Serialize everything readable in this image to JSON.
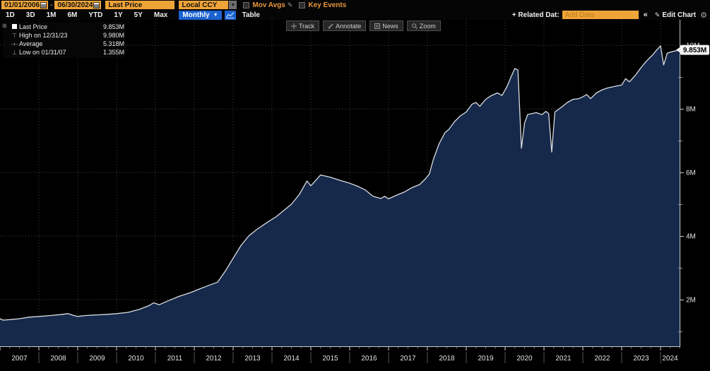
{
  "header": {
    "date_from": "01/01/2006",
    "date_to": "06/30/2024",
    "dash": "-",
    "field": "Last Price",
    "currency": "Local CCY",
    "dropdown_arrow": "▼",
    "mov_avgs_label": "Mov Avgs",
    "key_events_label": "Key Events",
    "range_tabs": {
      "t0": "1D",
      "t1": "3D",
      "t2": "1M",
      "t3": "6M",
      "t4": "YTD",
      "t5": "1Y",
      "t6": "5Y",
      "t7": "Max"
    },
    "period": "Monthly",
    "period_arrow": "▼",
    "table_label": "Table",
    "related_data_label": "+ Related Dat:",
    "add_data_placeholder": "Add Data",
    "collapse_label": "«",
    "edit_chart_label": "Edit Chart",
    "gear_glyph": "⚙",
    "pencil_glyph": "✎",
    "expander_glyph": "⊞"
  },
  "chart_toolbar": {
    "track": "Track",
    "annotate": "Annotate",
    "news": "News",
    "zoom": "Zoom"
  },
  "legend": {
    "rows": [
      {
        "icon": "series-square",
        "label": "Last Price",
        "value": "9.853M"
      },
      {
        "icon": "high-marker",
        "label": "High on 12/31/23",
        "value": "9.980M",
        "glyph": "⊤"
      },
      {
        "icon": "average-marker",
        "label": "Average",
        "value": "5.318M",
        "glyph": "-+-"
      },
      {
        "icon": "low-marker",
        "label": "Low on 01/31/07",
        "value": "1.355M",
        "glyph": "⊥"
      }
    ]
  },
  "chart_data": {
    "type": "area",
    "title": "Last Price",
    "x_unit": "decimal_year",
    "x_range": [
      2007.0,
      2024.5
    ],
    "x_tick_years": [
      2007,
      2008,
      2009,
      2010,
      2011,
      2012,
      2013,
      2014,
      2015,
      2016,
      2017,
      2018,
      2019,
      2020,
      2021,
      2022,
      2023,
      2024
    ],
    "y_axis": {
      "ticks": [
        2,
        4,
        6,
        8,
        10
      ],
      "tick_labels": [
        "2M",
        "4M",
        "6M",
        "8M",
        "10M"
      ],
      "minor_ticks": [
        1,
        3,
        5,
        7,
        9
      ],
      "unit": "M"
    },
    "grid": true,
    "legend_position": "top-left",
    "last_price": 9.853,
    "last_price_label": "9.853M",
    "high": {
      "date": "12/31/23",
      "value": 9.98
    },
    "low": {
      "date": "01/31/07",
      "value": 1.355
    },
    "average": 5.318,
    "points": [
      [
        2007.0,
        1.4
      ],
      [
        2007.08,
        1.355
      ],
      [
        2007.25,
        1.37
      ],
      [
        2007.5,
        1.4
      ],
      [
        2007.75,
        1.45
      ],
      [
        2008.0,
        1.47
      ],
      [
        2008.3,
        1.5
      ],
      [
        2008.55,
        1.53
      ],
      [
        2008.75,
        1.56
      ],
      [
        2008.9,
        1.5
      ],
      [
        2009.0,
        1.47
      ],
      [
        2009.2,
        1.5
      ],
      [
        2009.5,
        1.52
      ],
      [
        2009.8,
        1.54
      ],
      [
        2010.0,
        1.56
      ],
      [
        2010.3,
        1.6
      ],
      [
        2010.6,
        1.7
      ],
      [
        2010.85,
        1.82
      ],
      [
        2010.95,
        1.9
      ],
      [
        2011.1,
        1.84
      ],
      [
        2011.3,
        1.95
      ],
      [
        2011.6,
        2.1
      ],
      [
        2011.9,
        2.22
      ],
      [
        2012.1,
        2.32
      ],
      [
        2012.4,
        2.46
      ],
      [
        2012.6,
        2.55
      ],
      [
        2012.8,
        2.9
      ],
      [
        2013.0,
        3.3
      ],
      [
        2013.2,
        3.7
      ],
      [
        2013.4,
        4.0
      ],
      [
        2013.6,
        4.2
      ],
      [
        2013.9,
        4.45
      ],
      [
        2014.1,
        4.6
      ],
      [
        2014.3,
        4.8
      ],
      [
        2014.5,
        5.0
      ],
      [
        2014.7,
        5.3
      ],
      [
        2014.9,
        5.73
      ],
      [
        2015.0,
        5.58
      ],
      [
        2015.25,
        5.92
      ],
      [
        2015.5,
        5.85
      ],
      [
        2015.75,
        5.75
      ],
      [
        2016.0,
        5.66
      ],
      [
        2016.2,
        5.57
      ],
      [
        2016.4,
        5.45
      ],
      [
        2016.6,
        5.25
      ],
      [
        2016.8,
        5.18
      ],
      [
        2016.9,
        5.25
      ],
      [
        2017.0,
        5.17
      ],
      [
        2017.2,
        5.28
      ],
      [
        2017.4,
        5.38
      ],
      [
        2017.6,
        5.52
      ],
      [
        2017.8,
        5.62
      ],
      [
        2017.95,
        5.8
      ],
      [
        2018.05,
        5.95
      ],
      [
        2018.15,
        6.4
      ],
      [
        2018.3,
        6.9
      ],
      [
        2018.45,
        7.25
      ],
      [
        2018.55,
        7.35
      ],
      [
        2018.7,
        7.6
      ],
      [
        2018.85,
        7.78
      ],
      [
        2019.0,
        7.9
      ],
      [
        2019.15,
        8.15
      ],
      [
        2019.25,
        8.2
      ],
      [
        2019.35,
        8.08
      ],
      [
        2019.5,
        8.3
      ],
      [
        2019.65,
        8.42
      ],
      [
        2019.8,
        8.5
      ],
      [
        2019.92,
        8.42
      ],
      [
        2020.05,
        8.7
      ],
      [
        2020.15,
        9.0
      ],
      [
        2020.25,
        9.27
      ],
      [
        2020.33,
        9.22
      ],
      [
        2020.42,
        6.76
      ],
      [
        2020.5,
        7.55
      ],
      [
        2020.58,
        7.82
      ],
      [
        2020.8,
        7.88
      ],
      [
        2020.95,
        7.82
      ],
      [
        2021.05,
        7.92
      ],
      [
        2021.12,
        7.85
      ],
      [
        2021.2,
        6.64
      ],
      [
        2021.28,
        7.9
      ],
      [
        2021.45,
        8.05
      ],
      [
        2021.6,
        8.2
      ],
      [
        2021.75,
        8.3
      ],
      [
        2021.9,
        8.32
      ],
      [
        2022.0,
        8.38
      ],
      [
        2022.1,
        8.45
      ],
      [
        2022.2,
        8.32
      ],
      [
        2022.35,
        8.5
      ],
      [
        2022.5,
        8.6
      ],
      [
        2022.65,
        8.66
      ],
      [
        2022.8,
        8.7
      ],
      [
        2023.0,
        8.75
      ],
      [
        2023.1,
        8.95
      ],
      [
        2023.2,
        8.85
      ],
      [
        2023.35,
        9.05
      ],
      [
        2023.5,
        9.3
      ],
      [
        2023.6,
        9.45
      ],
      [
        2023.7,
        9.58
      ],
      [
        2023.8,
        9.7
      ],
      [
        2023.9,
        9.85
      ],
      [
        2024.0,
        9.98
      ],
      [
        2024.08,
        9.38
      ],
      [
        2024.17,
        9.75
      ],
      [
        2024.3,
        9.8
      ],
      [
        2024.5,
        9.853
      ]
    ]
  },
  "colors": {
    "amber": "#efa437",
    "blue": "#1b63d1",
    "line": "#d9dde2",
    "area_fill": "#16294a",
    "grid_v": "#3c3c3c",
    "grid_h": "#4a4a50",
    "axis": "#c8c8c8",
    "tick_label": "#e2e2e2",
    "badge_bg": "#f2f2f2",
    "badge_text": "#000000"
  }
}
